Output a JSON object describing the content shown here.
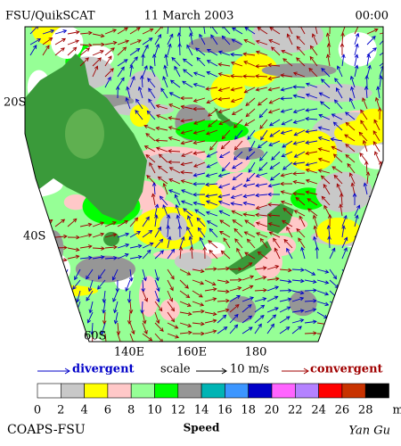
{
  "header": {
    "left": "FSU/QuikSCAT",
    "center": "11 March 2003",
    "right": "00:00"
  },
  "map": {
    "lat_labels": [
      "20S",
      "40S",
      "60S"
    ],
    "lon_labels": [
      "140E",
      "160E",
      "180"
    ]
  },
  "legend": {
    "divergent": "divergent",
    "scale": "scale",
    "scale_value": "10 m/s",
    "convergent": "convergent"
  },
  "colorbar": {
    "title": "Speed",
    "unit": "m/s",
    "ticks": [
      0,
      2,
      4,
      6,
      8,
      10,
      12,
      14,
      16,
      18,
      20,
      22,
      24,
      26,
      28
    ],
    "colors": [
      "#ffffff",
      "#c8c8c8",
      "#ffff00",
      "#ffc8c8",
      "#96ff96",
      "#00ff00",
      "#969696",
      "#00b4b4",
      "#3c96ff",
      "#0000c8",
      "#ff64ff",
      "#b482ff",
      "#ff0000",
      "#c83200",
      "#000000"
    ]
  },
  "footer": {
    "left": "COAPS-FSU",
    "right": "Yan Gu"
  }
}
